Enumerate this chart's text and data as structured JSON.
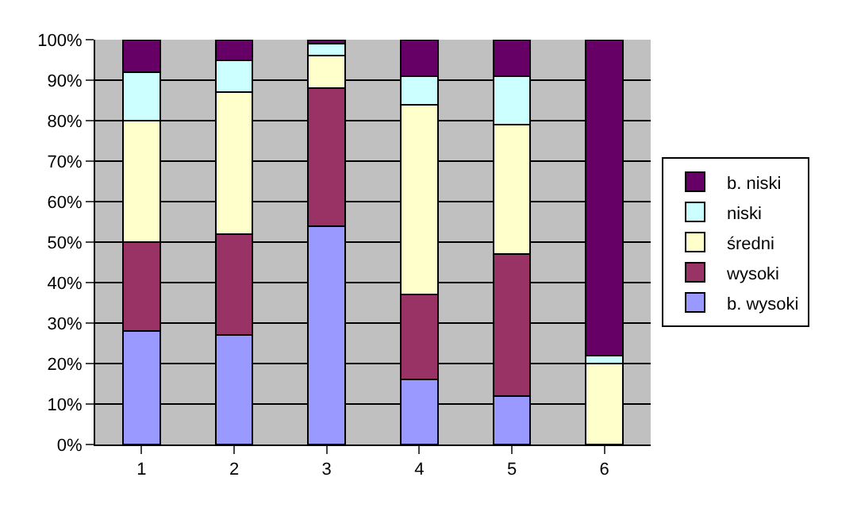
{
  "chart_data": {
    "type": "bar",
    "stacked": true,
    "categories": [
      "1",
      "2",
      "3",
      "4",
      "5",
      "6"
    ],
    "series": [
      {
        "name": "b. wysoki",
        "color": "#9999ff",
        "values": [
          28,
          27,
          54,
          16,
          12,
          0
        ]
      },
      {
        "name": "wysoki",
        "color": "#993366",
        "values": [
          22,
          25,
          34,
          21,
          35,
          0
        ]
      },
      {
        "name": "średni",
        "color": "#ffffcc",
        "values": [
          30,
          35,
          8,
          47,
          32,
          20
        ]
      },
      {
        "name": "niski",
        "color": "#ccffff",
        "values": [
          12,
          8,
          3,
          7,
          12,
          2
        ]
      },
      {
        "name": "b. niski",
        "color": "#660066",
        "values": [
          8,
          5,
          1,
          9,
          9,
          78
        ]
      }
    ],
    "ylim": [
      0,
      100
    ],
    "yticks": [
      {
        "value": 0,
        "label": "0%"
      },
      {
        "value": 10,
        "label": "10%"
      },
      {
        "value": 20,
        "label": "20%"
      },
      {
        "value": 30,
        "label": "30%"
      },
      {
        "value": 40,
        "label": "40%"
      },
      {
        "value": 50,
        "label": "50%"
      },
      {
        "value": 60,
        "label": "60%"
      },
      {
        "value": 70,
        "label": "70%"
      },
      {
        "value": 80,
        "label": "80%"
      },
      {
        "value": 90,
        "label": "90%"
      },
      {
        "value": 100,
        "label": "100%"
      }
    ],
    "grid": "y",
    "legend": "right"
  }
}
